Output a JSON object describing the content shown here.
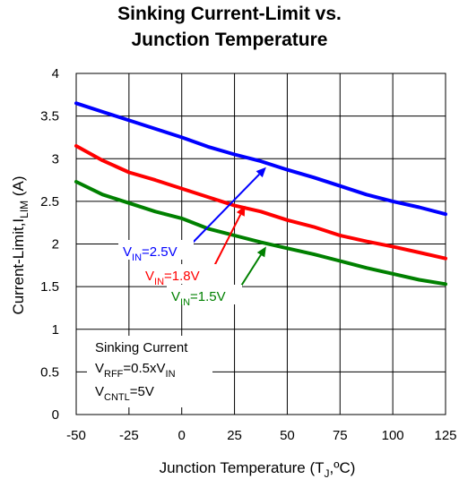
{
  "chart_data": {
    "type": "line",
    "title_lines": [
      "Sinking Current-Limit vs.",
      "Junction Temperature"
    ],
    "xlabel": {
      "main": "Junction Temperature (T",
      "sub": "J",
      "tail": ",ºC)"
    },
    "ylabel": {
      "main": "Current-Limit,I",
      "sub": "LIM",
      "tail": " (A)"
    },
    "xlim": [
      -50,
      125
    ],
    "ylim": [
      0,
      4
    ],
    "xticks": [
      "-50",
      "-25",
      "0",
      "25",
      "50",
      "75",
      "100",
      "125"
    ],
    "yticks": [
      "0",
      "0.5",
      "1",
      "1.5",
      "2",
      "2.5",
      "3",
      "3.5",
      "4"
    ],
    "x": [
      -50,
      -37.5,
      -25,
      -12.5,
      0,
      12.5,
      25,
      37.5,
      50,
      62.5,
      75,
      87.5,
      100,
      112.5,
      125
    ],
    "grid": true,
    "series": [
      {
        "name": "VIN=2.5V",
        "color": "#0000ff",
        "values": [
          3.65,
          3.55,
          3.45,
          3.35,
          3.25,
          3.14,
          3.05,
          2.97,
          2.87,
          2.78,
          2.68,
          2.58,
          2.5,
          2.43,
          2.35
        ]
      },
      {
        "name": "VIN=1.8V",
        "color": "#ff0000",
        "values": [
          3.15,
          2.98,
          2.84,
          2.75,
          2.65,
          2.55,
          2.45,
          2.38,
          2.28,
          2.2,
          2.1,
          2.03,
          1.97,
          1.9,
          1.83
        ]
      },
      {
        "name": "VIN=1.5V",
        "color": "#008000",
        "values": [
          2.73,
          2.58,
          2.48,
          2.38,
          2.3,
          2.18,
          2.1,
          2.02,
          1.95,
          1.88,
          1.8,
          1.72,
          1.65,
          1.58,
          1.53
        ]
      }
    ],
    "annotations": [
      {
        "main": "V",
        "sub": "IN",
        "tail": "=2.5V",
        "color": "#0000ff",
        "arrow_to": [
          40,
          2.9
        ]
      },
      {
        "main": "V",
        "sub": "IN",
        "tail": "=1.8V",
        "color": "#ff0000",
        "arrow_to": [
          30,
          2.45
        ]
      },
      {
        "main": "V",
        "sub": "IN",
        "tail": "=1.5V",
        "color": "#008000",
        "arrow_to": [
          40,
          1.97
        ]
      }
    ],
    "note": {
      "line1": "Sinking Current",
      "line2": {
        "a": "V",
        "a_sub": "RFF",
        "b": "=0.5xV",
        "b_sub": "IN"
      },
      "line3": {
        "a": "V",
        "a_sub": "CNTL",
        "b": "=5V"
      }
    }
  }
}
